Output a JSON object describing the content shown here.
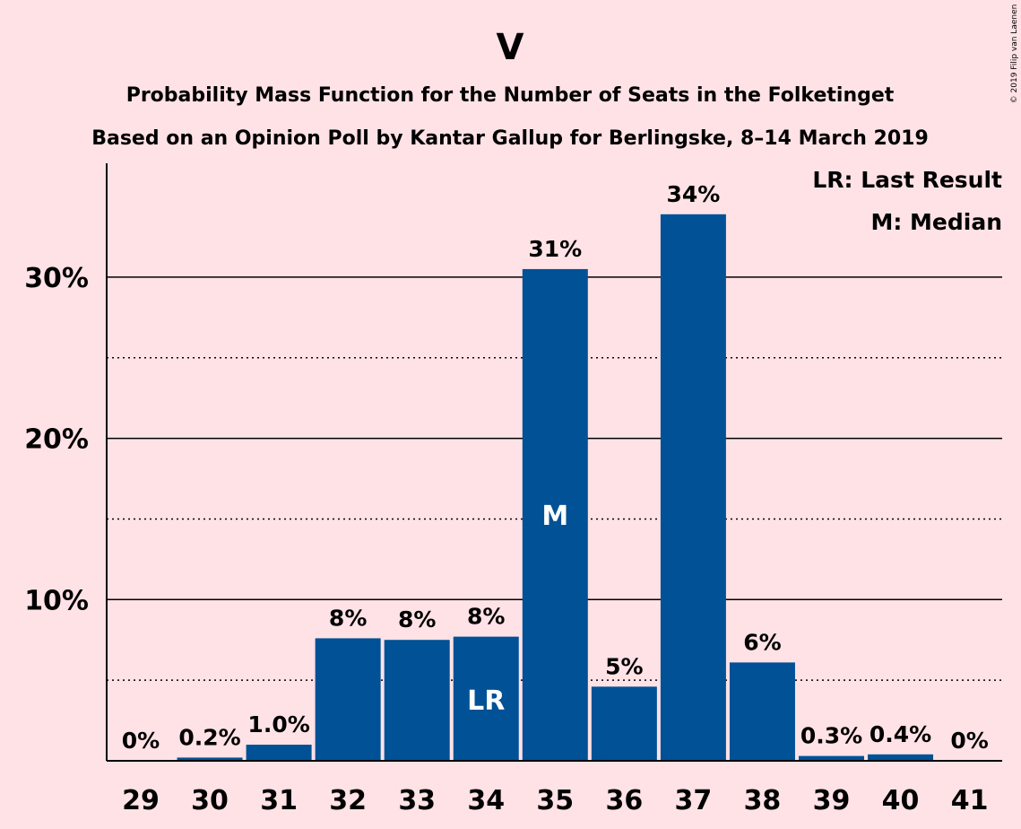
{
  "chart_data": {
    "type": "bar",
    "title": "V",
    "subtitle": "Probability Mass Function for the Number of Seats in the Folketinget",
    "subtitle2": "Based on an Opinion Poll by Kantar Gallup for Berlingske, 8–14 March 2019",
    "copyright": "© 2019 Filip van Laenen",
    "categories": [
      "29",
      "30",
      "31",
      "32",
      "33",
      "34",
      "35",
      "36",
      "37",
      "38",
      "39",
      "40",
      "41"
    ],
    "values": [
      0,
      0.2,
      1.0,
      7.6,
      7.5,
      7.7,
      30.5,
      4.6,
      33.9,
      6.1,
      0.3,
      0.4,
      0
    ],
    "data_labels": [
      "0%",
      "0.2%",
      "1.0%",
      "8%",
      "8%",
      "8%",
      "31%",
      "5%",
      "34%",
      "6%",
      "0.3%",
      "0.4%",
      "0%"
    ],
    "yticks": [
      10,
      20,
      30
    ],
    "ytick_labels": [
      "10%",
      "20%",
      "30%"
    ],
    "minor_gridlines": [
      5,
      15,
      25
    ],
    "ylim": [
      0,
      37
    ],
    "bar_color": "#005195",
    "background_color": "#FFE2E6",
    "markers": [
      {
        "category": "34",
        "label": "LR"
      },
      {
        "category": "35",
        "label": "M"
      }
    ],
    "legend": [
      "LR: Last Result",
      "M: Median"
    ],
    "legend_position": "top-right",
    "grid": true
  }
}
